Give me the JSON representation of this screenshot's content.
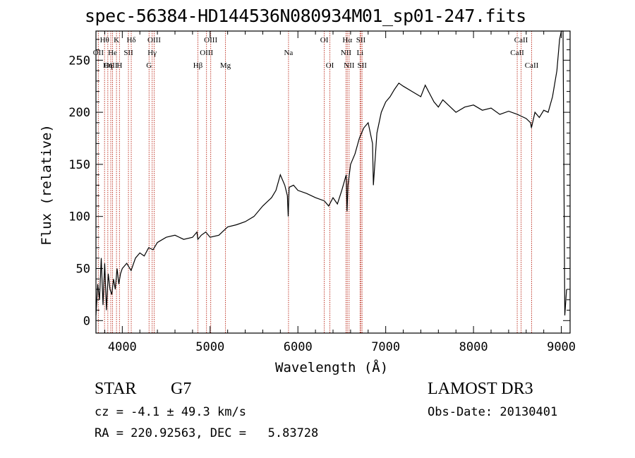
{
  "chart_data": {
    "type": "line",
    "title": "spec-56384-HD144536N080934M01_sp01-247.fits",
    "xlabel": "Wavelength (Å)",
    "ylabel": "Flux (relative)",
    "xlim": [
      3700,
      9100
    ],
    "ylim": [
      -12,
      278
    ],
    "xticks": [
      4000,
      5000,
      6000,
      7000,
      8000,
      9000
    ],
    "yticks": [
      0,
      50,
      100,
      150,
      200,
      250
    ],
    "series": [
      {
        "name": "flux",
        "x": [
          3700,
          3720,
          3740,
          3760,
          3780,
          3800,
          3820,
          3840,
          3860,
          3880,
          3900,
          3920,
          3940,
          3960,
          3980,
          4000,
          4050,
          4100,
          4150,
          4200,
          4250,
          4300,
          4350,
          4400,
          4500,
          4600,
          4700,
          4800,
          4850,
          4860,
          4900,
          4950,
          5000,
          5100,
          5150,
          5200,
          5300,
          5400,
          5500,
          5600,
          5700,
          5750,
          5800,
          5850,
          5880,
          5890,
          5900,
          5950,
          6000,
          6100,
          6200,
          6300,
          6350,
          6400,
          6450,
          6500,
          6550,
          6560,
          6570,
          6600,
          6650,
          6700,
          6750,
          6800,
          6850,
          6860,
          6880,
          6900,
          6950,
          7000,
          7050,
          7100,
          7150,
          7200,
          7300,
          7400,
          7450,
          7500,
          7550,
          7600,
          7650,
          7700,
          7800,
          7900,
          8000,
          8100,
          8200,
          8300,
          8400,
          8500,
          8550,
          8600,
          8650,
          8660,
          8700,
          8750,
          8800,
          8850,
          8900,
          8950,
          8980,
          9000,
          9020,
          9040,
          9060
        ],
        "y": [
          5,
          35,
          20,
          60,
          15,
          55,
          10,
          45,
          30,
          25,
          40,
          30,
          50,
          35,
          45,
          50,
          55,
          48,
          60,
          65,
          62,
          70,
          68,
          75,
          80,
          82,
          78,
          80,
          85,
          78,
          82,
          85,
          80,
          82,
          86,
          90,
          92,
          95,
          100,
          110,
          118,
          125,
          140,
          130,
          120,
          100,
          128,
          130,
          125,
          122,
          118,
          115,
          110,
          118,
          112,
          125,
          140,
          105,
          130,
          150,
          160,
          175,
          185,
          190,
          170,
          130,
          155,
          180,
          200,
          210,
          215,
          222,
          228,
          225,
          220,
          215,
          226,
          218,
          210,
          205,
          212,
          208,
          200,
          205,
          207,
          202,
          204,
          198,
          201,
          198,
          196,
          194,
          190,
          185,
          200,
          195,
          202,
          200,
          215,
          240,
          270,
          285,
          280,
          5,
          30
        ]
      }
    ],
    "lines": [
      {
        "label": "Hθ",
        "x": 3798,
        "row": 0
      },
      {
        "label": "OII",
        "x": 3727,
        "row": 1
      },
      {
        "label": "OIII",
        "x": 3869,
        "row": 2
      },
      {
        "label": "K",
        "x": 3934,
        "row": 0
      },
      {
        "label": "He",
        "x": 3889,
        "row": 1
      },
      {
        "label": "Hη",
        "x": 3835,
        "row": 2
      },
      {
        "label": "H",
        "x": 3968,
        "row": 2
      },
      {
        "label": "SII",
        "x": 4070,
        "row": 1
      },
      {
        "label": "Hδ",
        "x": 4102,
        "row": 0
      },
      {
        "label": "OIII",
        "x": 4363,
        "row": 0
      },
      {
        "label": "Hγ",
        "x": 4340,
        "row": 1
      },
      {
        "label": "G",
        "x": 4305,
        "row": 2
      },
      {
        "label": "Hβ",
        "x": 4861,
        "row": 2
      },
      {
        "label": "OIII",
        "x": 4959,
        "row": 1
      },
      {
        "label": "OIII",
        "x": 5007,
        "row": 0
      },
      {
        "label": "Mg",
        "x": 5175,
        "row": 2
      },
      {
        "label": "Na",
        "x": 5893,
        "row": 1
      },
      {
        "label": "OI",
        "x": 6300,
        "row": 0
      },
      {
        "label": "OI",
        "x": 6364,
        "row": 2
      },
      {
        "label": "Hα",
        "x": 6563,
        "row": 0
      },
      {
        "label": "NII",
        "x": 6548,
        "row": 1
      },
      {
        "label": "NII",
        "x": 6583,
        "row": 2
      },
      {
        "label": "SII",
        "x": 6717,
        "row": 0
      },
      {
        "label": "Li",
        "x": 6708,
        "row": 1
      },
      {
        "label": "SII",
        "x": 6731,
        "row": 2
      },
      {
        "label": "CaII",
        "x": 8542,
        "row": 0
      },
      {
        "label": "CaII",
        "x": 8498,
        "row": 1
      },
      {
        "label": "CaII",
        "x": 8662,
        "row": 2
      }
    ],
    "line_color": "#c0392b"
  },
  "info": {
    "object_class": "STAR",
    "subclass": "G7",
    "survey": "LAMOST DR3",
    "cz": "cz = -4.1 ± 49.3 km/s",
    "obs_date": "Obs-Date: 20130401",
    "coords": "RA = 220.92563, DEC =   5.83728"
  }
}
